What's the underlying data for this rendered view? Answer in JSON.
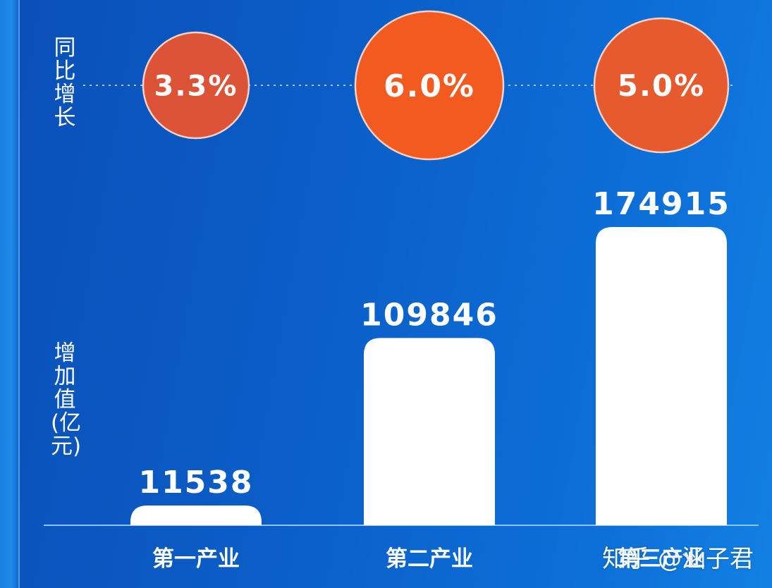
{
  "labels": {
    "growth_label": "同比增长",
    "value_label": "增加值(亿元)",
    "watermark": "知乎 @涵子君"
  },
  "colors": {
    "bar": "#ffffff",
    "circle_1": "#dc5338",
    "circle_2": "#f25a20",
    "circle_3": "#e65a2e",
    "circle_stroke": "#f3d2c5",
    "text": "#ffffff"
  },
  "chart_data": {
    "type": "bar",
    "categories": [
      "第一产业",
      "第二产业",
      "第三产业"
    ],
    "values": [
      11538,
      109846,
      174915
    ],
    "value_labels": [
      "11538",
      "109846",
      "174915"
    ],
    "growth": [
      "3.3%",
      "6.0%",
      "5.0%"
    ],
    "growth_values": [
      3.3,
      6.0,
      5.0
    ],
    "ylim": [
      0,
      174915
    ],
    "grid": false
  }
}
